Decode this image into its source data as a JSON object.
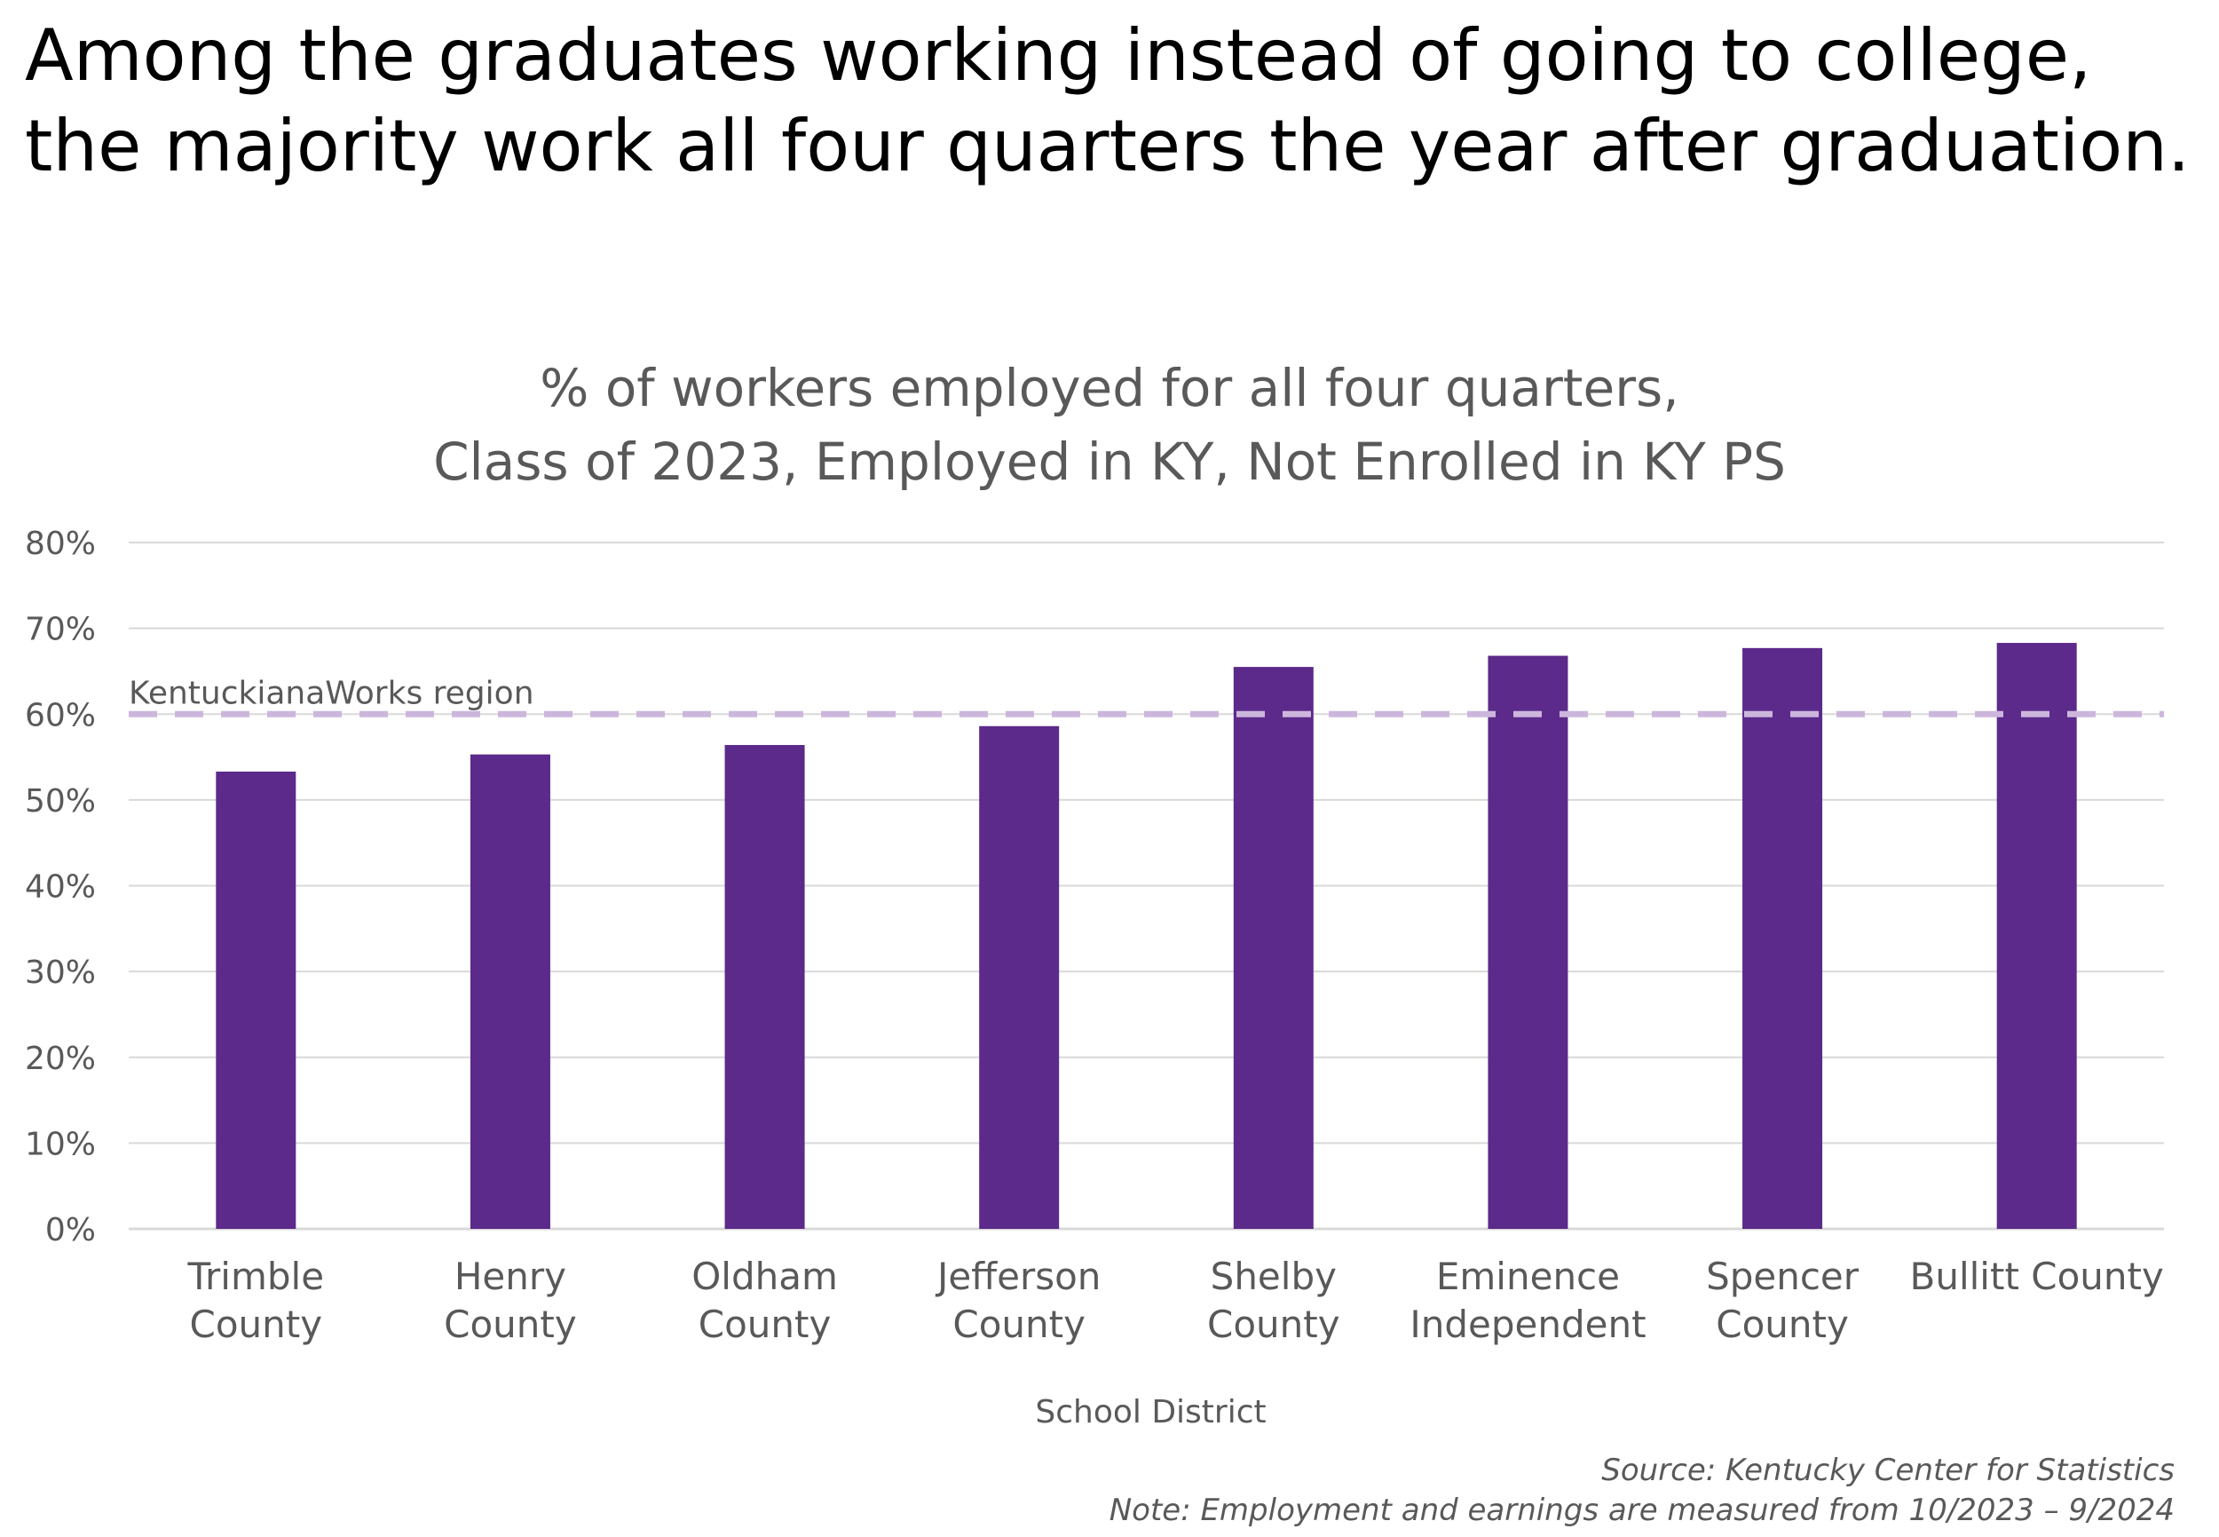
{
  "headline": "Among the graduates working instead of going to college, the majority work all four quarters the year after graduation.",
  "chart_data": {
    "type": "bar",
    "title_lines": [
      "% of workers employed for all four quarters,",
      "Class of 2023, Employed in KY, Not Enrolled in KY PS"
    ],
    "xlabel": "School District",
    "ylabel": "",
    "categories": [
      [
        "Trimble",
        "County"
      ],
      [
        "Henry",
        "County"
      ],
      [
        "Oldham",
        "County"
      ],
      [
        "Jefferson",
        "County"
      ],
      [
        "Shelby",
        "County"
      ],
      [
        "Eminence",
        "Independent"
      ],
      [
        "Spencer",
        "County"
      ],
      [
        "Bullitt County"
      ]
    ],
    "series": [
      {
        "values": [
          53.3,
          55.3,
          56.4,
          58.6,
          65.5,
          66.8,
          67.7,
          68.3
        ]
      }
    ],
    "yticks": [
      "0%",
      "10%",
      "20%",
      "30%",
      "40%",
      "50%",
      "60%",
      "70%",
      "80%"
    ],
    "ylim": [
      0,
      80
    ],
    "grid": true,
    "reference_line": {
      "label": "KentuckianaWorks region",
      "value": 60
    },
    "colors": {
      "bar": "#5b2a8a",
      "reference_line": "#cdb6dc",
      "grid": "#d9d9d9",
      "axis_text": "#595959"
    }
  },
  "footer": {
    "source": "Source: Kentucky Center for Statistics",
    "note": "Note: Employment and earnings are measured from 10/2023 – 9/2024"
  }
}
